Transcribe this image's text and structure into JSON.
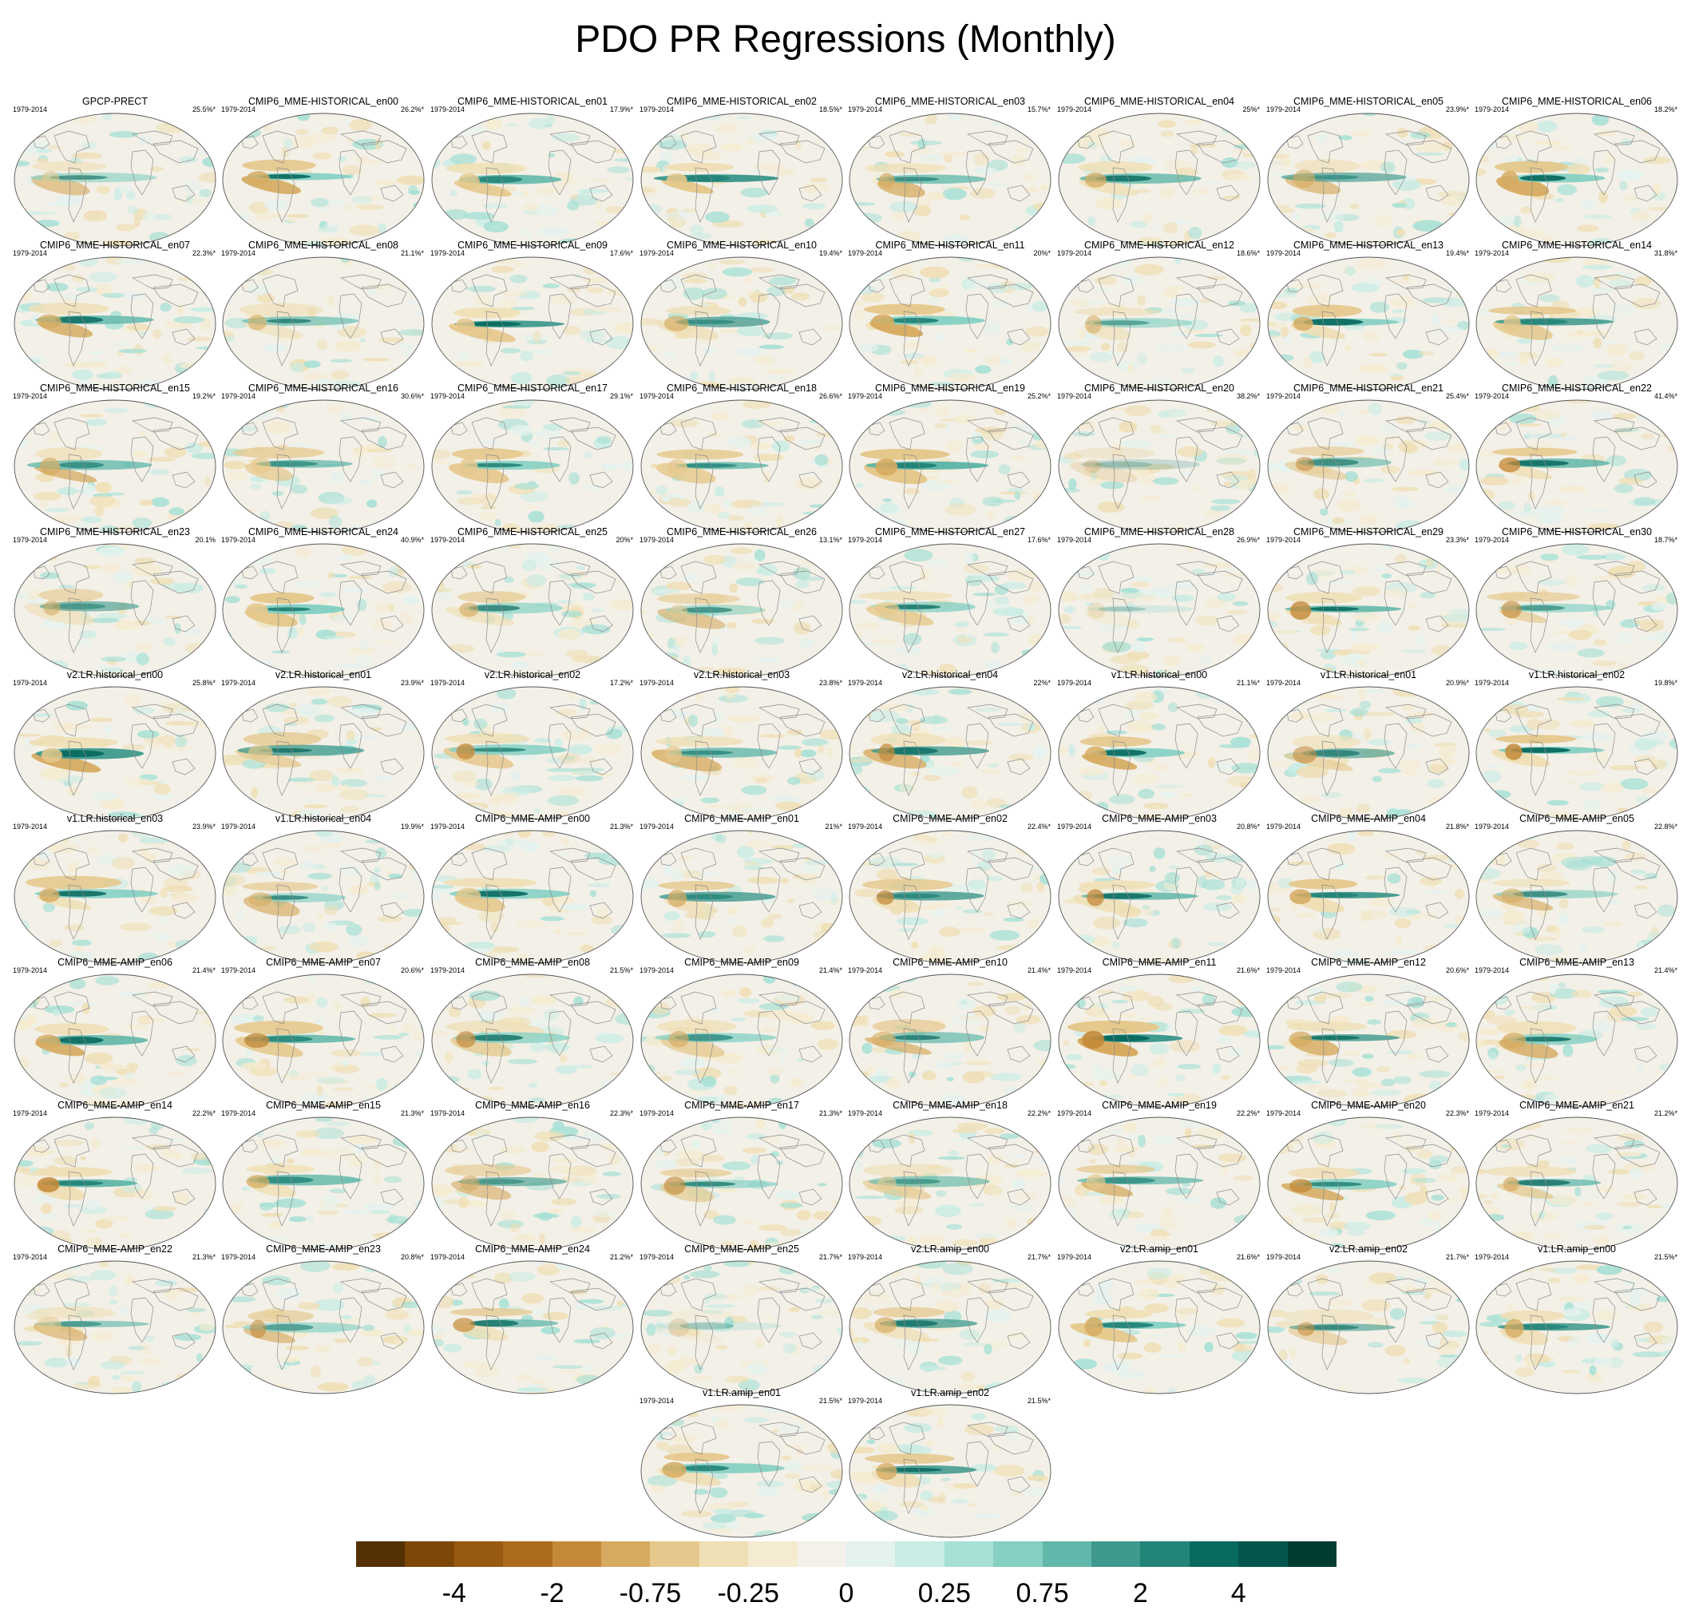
{
  "title": "PDO PR Regressions (Monthly)",
  "colors": {
    "colorbar": [
      "#543005",
      "#7d4708",
      "#985911",
      "#ad6c1d",
      "#c48a3a",
      "#d6ab61",
      "#e5c88c",
      "#efdfb5",
      "#f5ebd0",
      "#f4f1ea",
      "#e4f2ee",
      "#c9ece4",
      "#a6e0d5",
      "#85d0c3",
      "#61b7a9",
      "#3f998d",
      "#238478",
      "#096a5f",
      "#03564b",
      "#003c30"
    ],
    "land_outline": "#8c8c8c",
    "ocean_base": "#f3f0e8"
  },
  "chart_data": {
    "type": "heatmap",
    "title": "PDO PR Regressions (Monthly)",
    "period": "1979-2014",
    "colorbar": {
      "n_bins": 20,
      "tick_labels": [
        "-4",
        "-2",
        "-0.75",
        "-0.25",
        "0",
        "0.25",
        "0.75",
        "2",
        "4"
      ],
      "tick_bin_edges": [
        2,
        4,
        6,
        8,
        10,
        12,
        14,
        16,
        18
      ]
    },
    "panels": [
      {
        "name": "GPCP-PRECT",
        "pct": "25.5%*"
      },
      {
        "name": "CMIP6_MME-HISTORICAL_en00",
        "pct": "26.2%*"
      },
      {
        "name": "CMIP6_MME-HISTORICAL_en01",
        "pct": "17.9%*"
      },
      {
        "name": "CMIP6_MME-HISTORICAL_en02",
        "pct": "18.5%*"
      },
      {
        "name": "CMIP6_MME-HISTORICAL_en03",
        "pct": "15.7%*"
      },
      {
        "name": "CMIP6_MME-HISTORICAL_en04",
        "pct": "25%*"
      },
      {
        "name": "CMIP6_MME-HISTORICAL_en05",
        "pct": "23.9%*"
      },
      {
        "name": "CMIP6_MME-HISTORICAL_en06",
        "pct": "18.2%*"
      },
      {
        "name": "CMIP6_MME-HISTORICAL_en07",
        "pct": "22.3%*"
      },
      {
        "name": "CMIP6_MME-HISTORICAL_en08",
        "pct": "21.1%*"
      },
      {
        "name": "CMIP6_MME-HISTORICAL_en09",
        "pct": "17.6%*"
      },
      {
        "name": "CMIP6_MME-HISTORICAL_en10",
        "pct": "19.4%*"
      },
      {
        "name": "CMIP6_MME-HISTORICAL_en11",
        "pct": "20%*"
      },
      {
        "name": "CMIP6_MME-HISTORICAL_en12",
        "pct": "18.6%*"
      },
      {
        "name": "CMIP6_MME-HISTORICAL_en13",
        "pct": "19.4%*"
      },
      {
        "name": "CMIP6_MME-HISTORICAL_en14",
        "pct": "31.8%*"
      },
      {
        "name": "CMIP6_MME-HISTORICAL_en15",
        "pct": "19.2%*"
      },
      {
        "name": "CMIP6_MME-HISTORICAL_en16",
        "pct": "30.6%*"
      },
      {
        "name": "CMIP6_MME-HISTORICAL_en17",
        "pct": "29.1%*"
      },
      {
        "name": "CMIP6_MME-HISTORICAL_en18",
        "pct": "26.6%*"
      },
      {
        "name": "CMIP6_MME-HISTORICAL_en19",
        "pct": "25.2%*"
      },
      {
        "name": "CMIP6_MME-HISTORICAL_en20",
        "pct": "38.2%*"
      },
      {
        "name": "CMIP6_MME-HISTORICAL_en21",
        "pct": "25.4%*"
      },
      {
        "name": "CMIP6_MME-HISTORICAL_en22",
        "pct": "41.4%*"
      },
      {
        "name": "CMIP6_MME-HISTORICAL_en23",
        "pct": "20.1%"
      },
      {
        "name": "CMIP6_MME-HISTORICAL_en24",
        "pct": "40.9%*"
      },
      {
        "name": "CMIP6_MME-HISTORICAL_en25",
        "pct": "20%*"
      },
      {
        "name": "CMIP6_MME-HISTORICAL_en26",
        "pct": "13.1%*"
      },
      {
        "name": "CMIP6_MME-HISTORICAL_en27",
        "pct": "17.6%*"
      },
      {
        "name": "CMIP6_MME-HISTORICAL_en28",
        "pct": "26.9%*"
      },
      {
        "name": "CMIP6_MME-HISTORICAL_en29",
        "pct": "23.3%*"
      },
      {
        "name": "CMIP6_MME-HISTORICAL_en30",
        "pct": "18.7%*"
      },
      {
        "name": "v2.LR.historical_en00",
        "pct": "25.8%*"
      },
      {
        "name": "v2.LR.historical_en01",
        "pct": "23.9%*"
      },
      {
        "name": "v2.LR.historical_en02",
        "pct": "17.2%*"
      },
      {
        "name": "v2.LR.historical_en03",
        "pct": "23.8%*"
      },
      {
        "name": "v2.LR.historical_en04",
        "pct": "22%*"
      },
      {
        "name": "v1.LR.historical_en00",
        "pct": "21.1%*"
      },
      {
        "name": "v1.LR.historical_en01",
        "pct": "20.9%*"
      },
      {
        "name": "v1.LR.historical_en02",
        "pct": "19.8%*"
      },
      {
        "name": "v1.LR.historical_en03",
        "pct": "23.9%*"
      },
      {
        "name": "v1.LR.historical_en04",
        "pct": "19.9%*"
      },
      {
        "name": "CMIP6_MME-AMIP_en00",
        "pct": "21.3%*"
      },
      {
        "name": "CMIP6_MME-AMIP_en01",
        "pct": "21%*"
      },
      {
        "name": "CMIP6_MME-AMIP_en02",
        "pct": "22.4%*"
      },
      {
        "name": "CMIP6_MME-AMIP_en03",
        "pct": "20.8%*"
      },
      {
        "name": "CMIP6_MME-AMIP_en04",
        "pct": "21.8%*"
      },
      {
        "name": "CMIP6_MME-AMIP_en05",
        "pct": "22.8%*"
      },
      {
        "name": "CMIP6_MME-AMIP_en06",
        "pct": "21.4%*"
      },
      {
        "name": "CMIP6_MME-AMIP_en07",
        "pct": "20.6%*"
      },
      {
        "name": "CMIP6_MME-AMIP_en08",
        "pct": "21.5%*"
      },
      {
        "name": "CMIP6_MME-AMIP_en09",
        "pct": "21.4%*"
      },
      {
        "name": "CMIP6_MME-AMIP_en10",
        "pct": "21.4%*"
      },
      {
        "name": "CMIP6_MME-AMIP_en11",
        "pct": "21.6%*"
      },
      {
        "name": "CMIP6_MME-AMIP_en12",
        "pct": "20.6%*"
      },
      {
        "name": "CMIP6_MME-AMIP_en13",
        "pct": "21.4%*"
      },
      {
        "name": "CMIP6_MME-AMIP_en14",
        "pct": "22.2%*"
      },
      {
        "name": "CMIP6_MME-AMIP_en15",
        "pct": "21.3%*"
      },
      {
        "name": "CMIP6_MME-AMIP_en16",
        "pct": "22.3%*"
      },
      {
        "name": "CMIP6_MME-AMIP_en17",
        "pct": "21.3%*"
      },
      {
        "name": "CMIP6_MME-AMIP_en18",
        "pct": "22.2%*"
      },
      {
        "name": "CMIP6_MME-AMIP_en19",
        "pct": "22.2%*"
      },
      {
        "name": "CMIP6_MME-AMIP_en20",
        "pct": "22.3%*"
      },
      {
        "name": "CMIP6_MME-AMIP_en21",
        "pct": "21.2%*"
      },
      {
        "name": "CMIP6_MME-AMIP_en22",
        "pct": "21.3%*"
      },
      {
        "name": "CMIP6_MME-AMIP_en23",
        "pct": "20.8%*"
      },
      {
        "name": "CMIP6_MME-AMIP_en24",
        "pct": "21.2%*"
      },
      {
        "name": "CMIP6_MME-AMIP_en25",
        "pct": "21.7%*"
      },
      {
        "name": "v2.LR.amip_en00",
        "pct": "21.7%*"
      },
      {
        "name": "v2.LR.amip_en01",
        "pct": "21.6%*"
      },
      {
        "name": "v2.LR.amip_en02",
        "pct": "21.7%*"
      },
      {
        "name": "v1.LR.amip_en00",
        "pct": "21.5%*"
      },
      {
        "name": "v1.LR.amip_en01",
        "pct": "21.5%*"
      },
      {
        "name": "v1.LR.amip_en02",
        "pct": "21.5%*"
      }
    ]
  }
}
